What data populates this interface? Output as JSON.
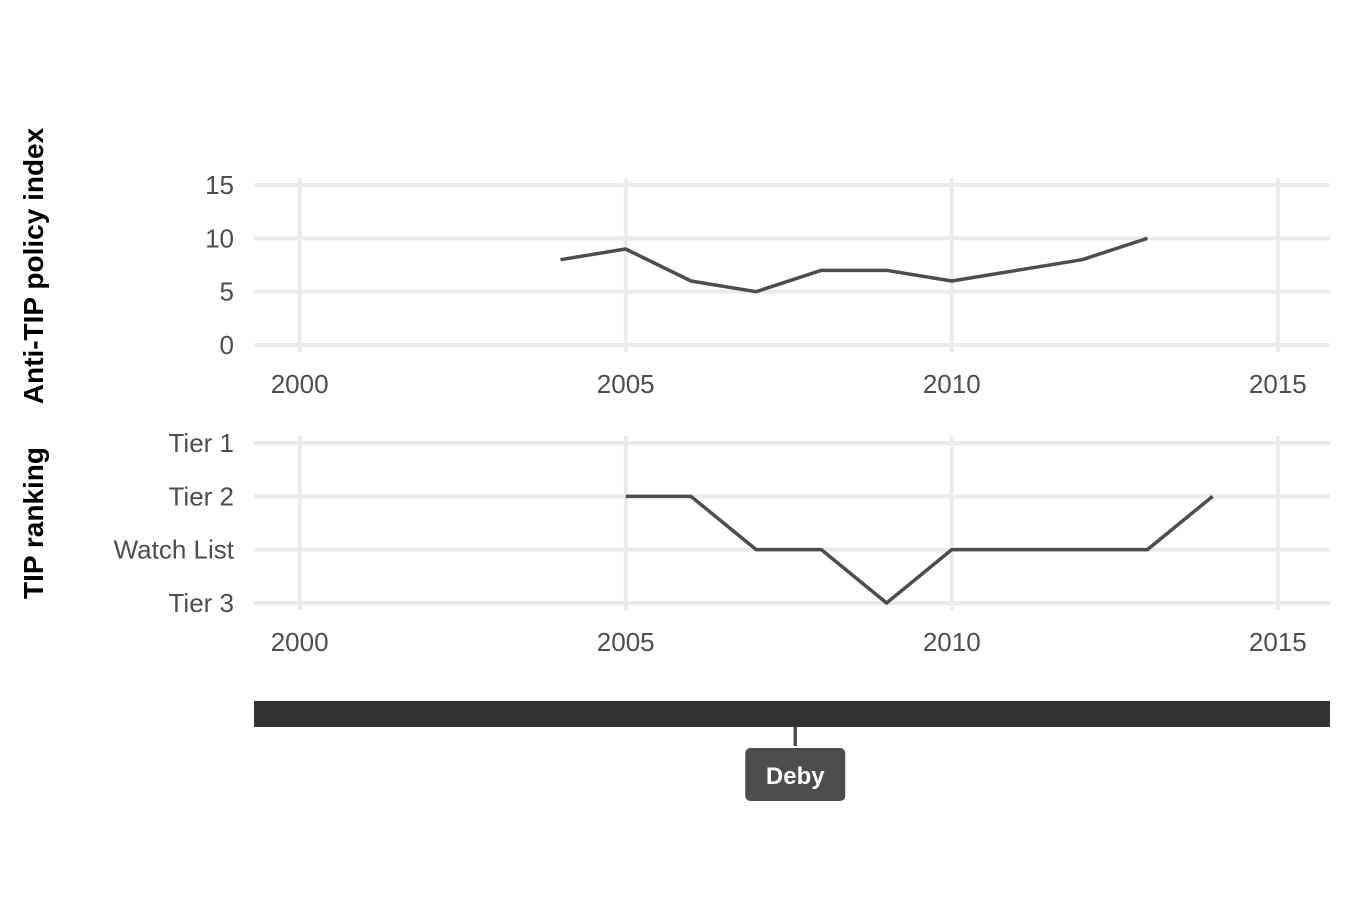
{
  "chart_data": [
    {
      "type": "line",
      "ylabel": "Anti-TIP policy index",
      "xlabel": "",
      "xlim": [
        1999.3,
        2015.8
      ],
      "ylim": [
        0,
        15
      ],
      "x_ticks": [
        2000,
        2005,
        2010,
        2015
      ],
      "y_ticks": [
        0,
        5,
        10,
        15
      ],
      "grid": true,
      "series": [
        {
          "x": [
            2004,
            2005,
            2006,
            2007,
            2008,
            2009,
            2010,
            2011,
            2012,
            2013
          ],
          "y": [
            8,
            9,
            6,
            5,
            7,
            7,
            6,
            7,
            8,
            10
          ]
        }
      ]
    },
    {
      "type": "line",
      "ylabel": "TIP ranking",
      "xlabel": "",
      "xlim": [
        1999.3,
        2015.8
      ],
      "ylim": [
        1,
        4
      ],
      "x_ticks": [
        2000,
        2005,
        2010,
        2015
      ],
      "y_categories": [
        "Tier 1",
        "Tier 2",
        "Watch List",
        "Tier 3"
      ],
      "grid": true,
      "series": [
        {
          "x": [
            2005,
            2006,
            2007,
            2008,
            2009,
            2010,
            2011,
            2012,
            2013,
            2014
          ],
          "y": [
            "Tier 2",
            "Tier 2",
            "Watch List",
            "Watch List",
            "Tier 3",
            "Watch List",
            "Watch List",
            "Watch List",
            "Watch List",
            "Tier 2"
          ]
        }
      ]
    },
    {
      "type": "timeline",
      "xlim": [
        1999.3,
        2015.8
      ],
      "periods": [
        {
          "start": 1999.3,
          "end": 2015.8,
          "label": "Deby",
          "label_at": 2007.6
        }
      ],
      "bar_color": "#333333",
      "label_color": "#4d4d4d"
    }
  ]
}
